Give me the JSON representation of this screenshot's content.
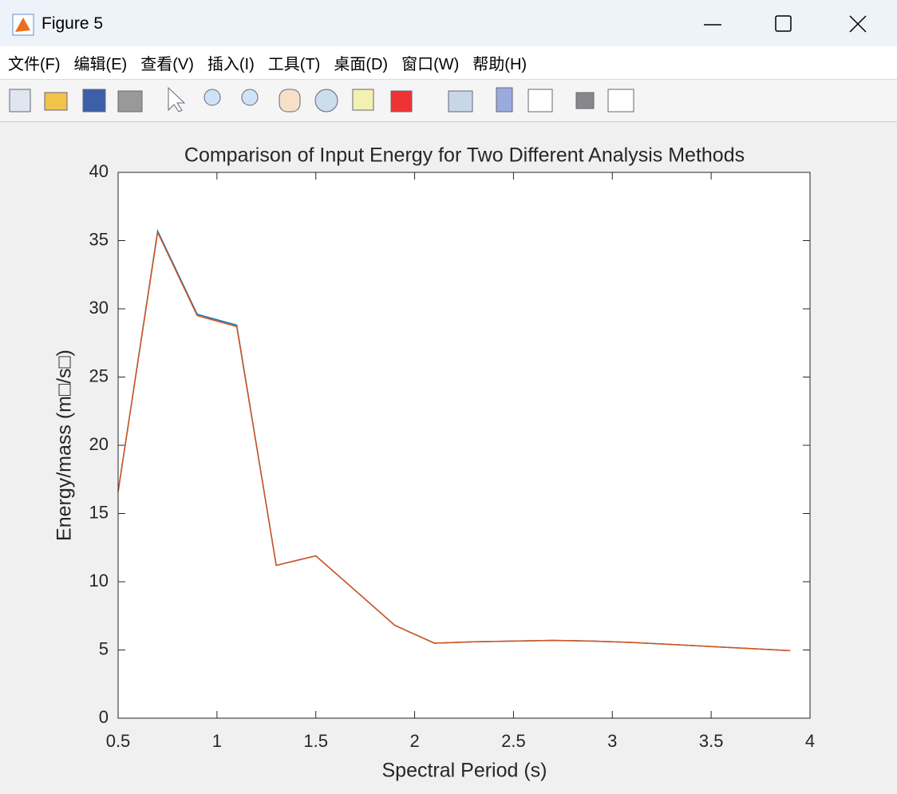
{
  "window": {
    "title": "Figure 5",
    "menu": [
      "文件(F)",
      "编辑(E)",
      "查看(V)",
      "插入(I)",
      "工具(T)",
      "桌面(D)",
      "窗口(W)",
      "帮助(H)"
    ]
  },
  "chart_data": {
    "type": "line",
    "title": "Comparison of Input Energy for Two Different Analysis Methods",
    "xlabel": "Spectral Period (s)",
    "ylabel": "Energy/mass (m□/s□)",
    "x": [
      0.5,
      0.7,
      0.9,
      1.1,
      1.3,
      1.5,
      1.7,
      1.9,
      2.1,
      2.3,
      2.5,
      2.7,
      2.9,
      3.1,
      3.3,
      3.5,
      3.7,
      3.9
    ],
    "series": [
      {
        "color": "#0072bd",
        "values": [
          16.6,
          35.7,
          29.6,
          28.8,
          11.2,
          11.9,
          9.35,
          6.8,
          5.5,
          5.6,
          5.65,
          5.7,
          5.65,
          5.55,
          5.4,
          5.25,
          5.1,
          4.95
        ]
      },
      {
        "color": "#d95319",
        "values": [
          16.6,
          35.6,
          29.5,
          28.7,
          11.2,
          11.9,
          9.35,
          6.8,
          5.5,
          5.6,
          5.65,
          5.7,
          5.65,
          5.55,
          5.4,
          5.25,
          5.1,
          4.95
        ]
      }
    ],
    "xlim": [
      0.5,
      4
    ],
    "xticks": [
      0.5,
      1,
      1.5,
      2,
      2.5,
      3,
      3.5,
      4
    ],
    "ylim": [
      0,
      40
    ],
    "yticks": [
      0,
      5,
      10,
      15,
      20,
      25,
      30,
      35,
      40
    ],
    "grid": false
  }
}
